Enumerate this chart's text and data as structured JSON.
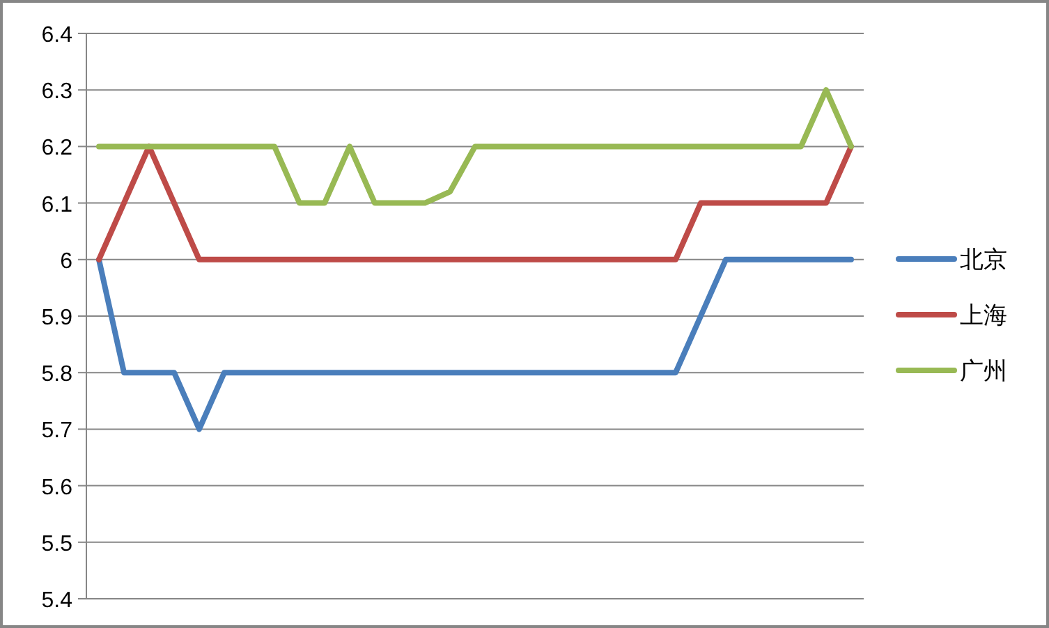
{
  "chart_data": {
    "type": "line",
    "categories": [
      null,
      null,
      null,
      null,
      null,
      null,
      null,
      null,
      null,
      null,
      null,
      null,
      null,
      null,
      null,
      null,
      null,
      null,
      null,
      null,
      null,
      null,
      null,
      null,
      null,
      null,
      null,
      null,
      null,
      null,
      null
    ],
    "series": [
      {
        "name": "北京",
        "color": "#4a7ebb",
        "values": [
          6.0,
          5.8,
          5.8,
          5.8,
          5.7,
          5.8,
          5.8,
          5.8,
          5.8,
          5.8,
          5.8,
          5.8,
          5.8,
          5.8,
          5.8,
          5.8,
          5.8,
          5.8,
          5.8,
          5.8,
          5.8,
          5.8,
          5.8,
          5.8,
          5.9,
          6.0,
          6.0,
          6.0,
          6.0,
          6.0,
          6.0
        ]
      },
      {
        "name": "上海",
        "color": "#be4b48",
        "values": [
          6.0,
          6.1,
          6.2,
          6.1,
          6.0,
          6.0,
          6.0,
          6.0,
          6.0,
          6.0,
          6.0,
          6.0,
          6.0,
          6.0,
          6.0,
          6.0,
          6.0,
          6.0,
          6.0,
          6.0,
          6.0,
          6.0,
          6.0,
          6.0,
          6.1,
          6.1,
          6.1,
          6.1,
          6.1,
          6.1,
          6.2
        ]
      },
      {
        "name": "广州",
        "color": "#98b954",
        "values": [
          6.2,
          6.2,
          6.2,
          6.2,
          6.2,
          6.2,
          6.2,
          6.2,
          6.1,
          6.1,
          6.2,
          6.1,
          6.1,
          6.1,
          6.12,
          6.2,
          6.2,
          6.2,
          6.2,
          6.2,
          6.2,
          6.2,
          6.2,
          6.2,
          6.2,
          6.2,
          6.2,
          6.2,
          6.2,
          6.3,
          6.2
        ]
      }
    ],
    "ylim": [
      5.4,
      6.4
    ],
    "yticks": [
      5.4,
      5.5,
      5.6,
      5.7,
      5.8,
      5.9,
      6,
      6.1,
      6.2,
      6.3,
      6.4
    ],
    "grid": "y",
    "legend": "right",
    "marker": "none",
    "line_style": "solid"
  }
}
